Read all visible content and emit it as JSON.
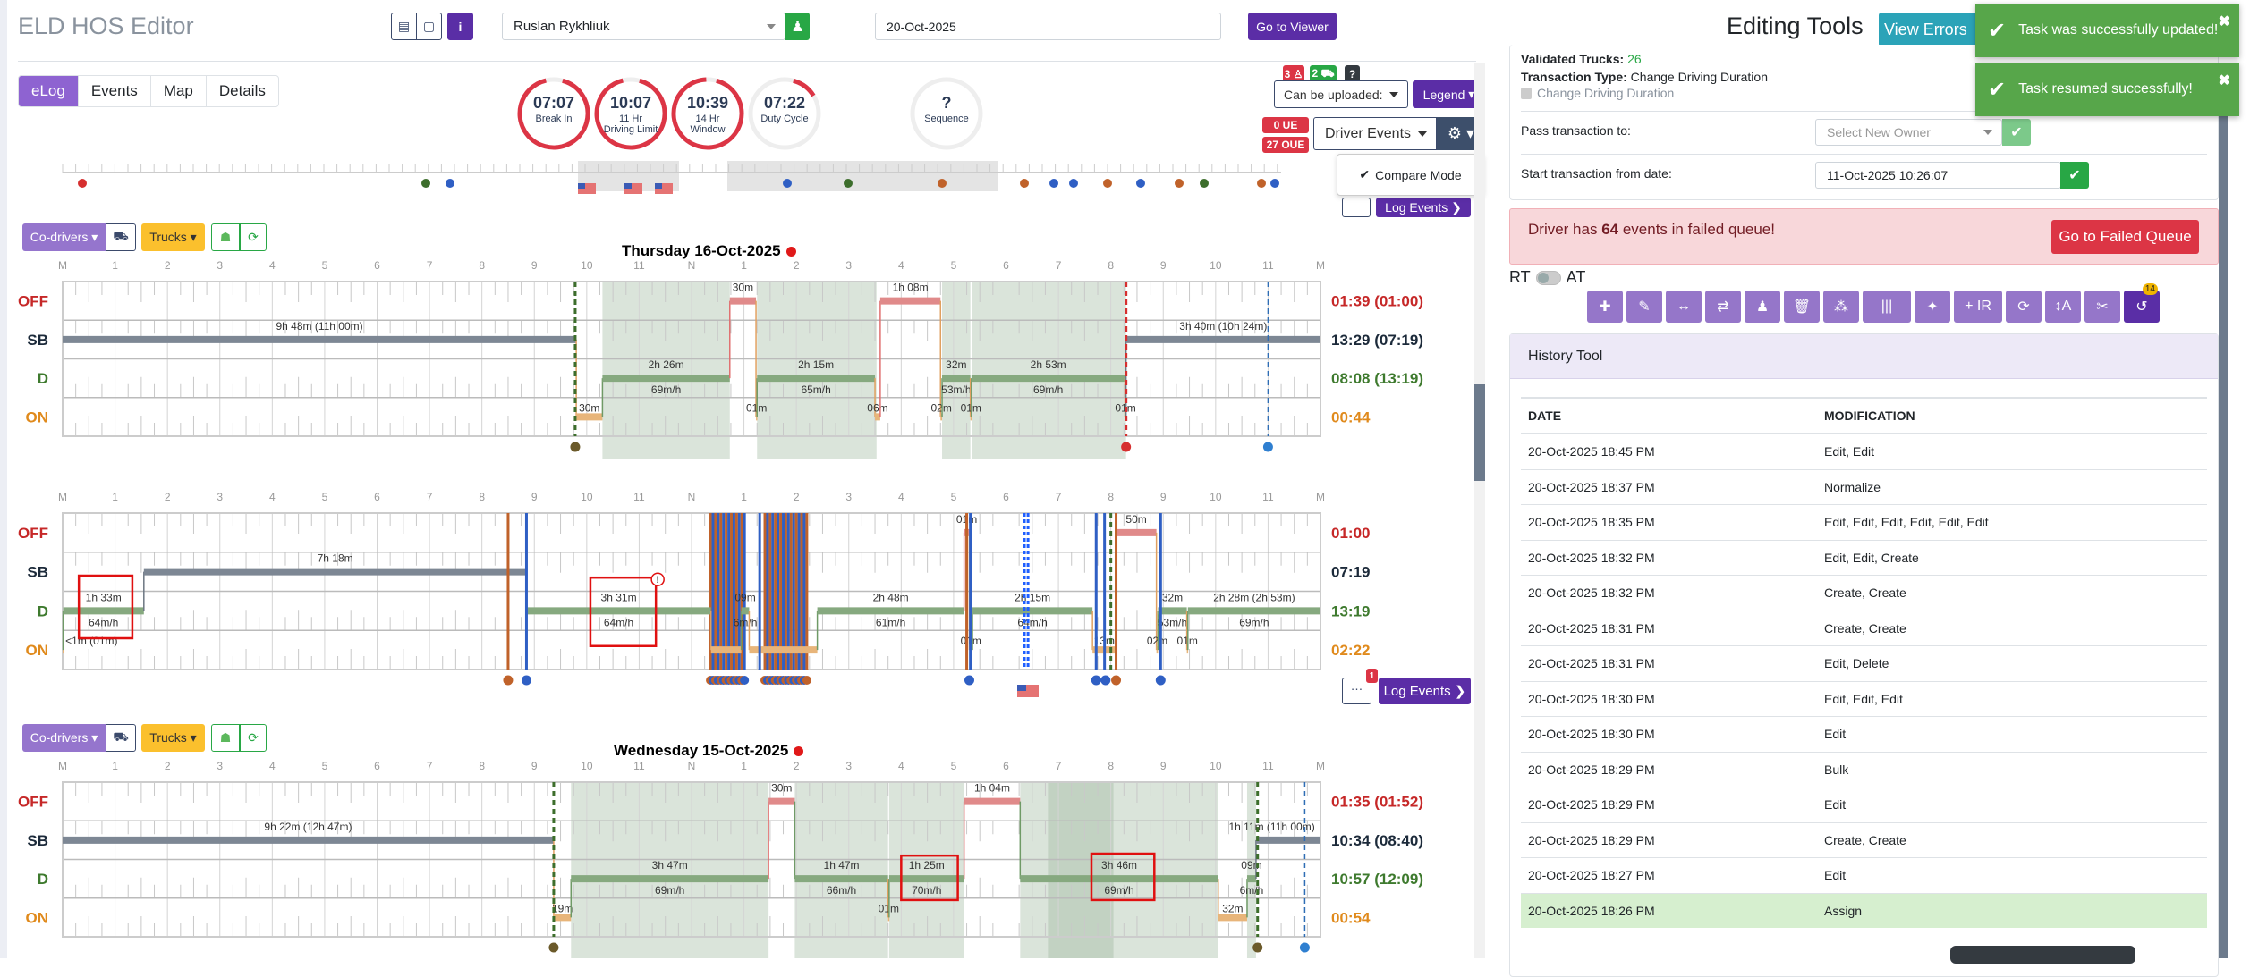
{
  "app": {
    "title": "ELD HOS Editor"
  },
  "header": {
    "driver": "Ruslan Rykhliuk",
    "date": "20-Oct-2025",
    "go_viewer": "Go to Viewer",
    "doc_icon": "▤",
    "note_icon": "▢",
    "info_icon": "i",
    "user_icon": "♟"
  },
  "tabs": [
    {
      "label": "eLog",
      "active": true
    },
    {
      "label": "Events"
    },
    {
      "label": "Map"
    },
    {
      "label": "Details"
    }
  ],
  "gauges": [
    {
      "value": "07:07",
      "label1": "Break In",
      "label2": "",
      "fraction": 0.92
    },
    {
      "value": "10:07",
      "label1": "11 Hr",
      "label2": "Driving Limit",
      "fraction": 0.92
    },
    {
      "value": "10:39",
      "label1": "14 Hr",
      "label2": "Window",
      "fraction": 0.95
    },
    {
      "value": "07:22",
      "label1": "Duty Cycle",
      "label2": "",
      "fraction": 0.12
    },
    {
      "value": "?",
      "label1": "Sequence",
      "label2": "",
      "fraction": 0
    }
  ],
  "controls": {
    "badge_driver": "3 ♙",
    "badge_truck": "2 ⛟",
    "badge_help": "?",
    "upload_select": "Can be uploaded:",
    "legend": "Legend",
    "ue": "0 UE",
    "oue": "27 OUE",
    "driver_events": "Driver Events",
    "gear_icon": "⚙",
    "compare_check": "✔",
    "compare_mode": "Compare Mode",
    "log_events": "Log Events ❯",
    "chat_icon": "…",
    "chat_badge": "1"
  },
  "toolbar": {
    "codrivers": "Co-drivers ▾",
    "truck_icon": "⛟",
    "trucks": "Trucks ▾",
    "robot_icon": "☗",
    "refresh_icon": "⟳"
  },
  "grid": {
    "hour_labels": [
      "M",
      "1",
      "2",
      "3",
      "4",
      "5",
      "6",
      "7",
      "8",
      "9",
      "10",
      "11",
      "N",
      "1",
      "2",
      "3",
      "4",
      "5",
      "6",
      "7",
      "8",
      "9",
      "10",
      "11",
      "M"
    ],
    "rows": [
      "OFF",
      "SB",
      "D",
      "ON"
    ],
    "colors": {
      "OFF": "#c62828",
      "SB": "#1c2a3a",
      "D": "#3e7a2e",
      "ON": "#e08a1c"
    }
  },
  "days": [
    {
      "title": "Thursday 16-Oct-2025",
      "totals": [
        "01:39 (01:00)",
        "13:29 (07:19)",
        "08:08 (13:19)",
        "00:44"
      ],
      "segments": [
        {
          "status": "SB",
          "from": 0,
          "to": 9.8,
          "label": "9h 48m (11h 00m)"
        },
        {
          "status": "ON",
          "from": 9.8,
          "to": 10.3,
          "label": "30m"
        },
        {
          "status": "D",
          "from": 10.3,
          "to": 12.73,
          "label": "2h 26m",
          "speed": "69m/h"
        },
        {
          "status": "OFF",
          "from": 12.73,
          "to": 13.23,
          "label": "30m"
        },
        {
          "status": "ON",
          "from": 13.23,
          "to": 13.25,
          "label": "01m"
        },
        {
          "status": "D",
          "from": 13.25,
          "to": 15.5,
          "label": "2h 15m",
          "speed": "65m/h"
        },
        {
          "status": "ON",
          "from": 15.5,
          "to": 15.6,
          "label": "06m"
        },
        {
          "status": "OFF",
          "from": 15.6,
          "to": 16.75,
          "label": "1h 08m"
        },
        {
          "status": "ON",
          "from": 16.75,
          "to": 16.78,
          "label": "02m"
        },
        {
          "status": "D",
          "from": 16.78,
          "to": 17.32,
          "label": "32m",
          "speed": "53m/h"
        },
        {
          "status": "ON",
          "from": 17.32,
          "to": 17.34,
          "label": "01m"
        },
        {
          "status": "D",
          "from": 17.34,
          "to": 20.27,
          "label": "2h 53m",
          "speed": "69m/h"
        },
        {
          "status": "ON",
          "from": 20.27,
          "to": 20.29,
          "label": "01m"
        },
        {
          "status": "SB",
          "from": 20.29,
          "to": 24,
          "label": "3h 40m (10h 24m)"
        }
      ],
      "shade": [
        [
          10.3,
          12.73
        ],
        [
          13.25,
          15.53
        ],
        [
          16.78,
          17.32
        ],
        [
          17.36,
          20.29
        ]
      ],
      "vlines": [
        {
          "at": 9.78,
          "color": "#3d6e2c",
          "style": "dashed"
        },
        {
          "at": 20.29,
          "color": "#d62f2f",
          "style": "dashed"
        },
        {
          "at": 23.0,
          "color": "#2f6db5",
          "style": "dashed-thin"
        }
      ],
      "markers": [
        {
          "at": 9.78,
          "color": "#6b5a2a"
        },
        {
          "at": 20.29,
          "color": "#d62f2f"
        },
        {
          "at": 23.0,
          "color": "#2f7fd0"
        }
      ],
      "highlights": [],
      "clusters": []
    },
    {
      "title": "",
      "totals": [
        "01:00",
        "07:19",
        "13:19",
        "02:22"
      ],
      "segments": [
        {
          "status": "ON",
          "from": 0,
          "to": 0.01,
          "label": "<1m (01m)"
        },
        {
          "status": "D",
          "from": 0.01,
          "to": 1.55,
          "label": "1h 33m",
          "speed": "64m/h"
        },
        {
          "status": "SB",
          "from": 1.55,
          "to": 8.85,
          "label": "7h 18m"
        },
        {
          "status": "D",
          "from": 8.85,
          "to": 12.37,
          "label": "3h 31m",
          "speed": "64m/h"
        },
        {
          "status": "ON",
          "from": 12.37,
          "to": 12.95
        },
        {
          "status": "D",
          "from": 12.95,
          "to": 13.1,
          "label": "09m",
          "speed": "6m/h"
        },
        {
          "status": "ON",
          "from": 13.1,
          "to": 14.4
        },
        {
          "status": "D",
          "from": 14.4,
          "to": 17.2,
          "label": "2h 48m",
          "speed": "61m/h"
        },
        {
          "status": "OFF",
          "from": 17.2,
          "to": 17.3,
          "label": "01m"
        },
        {
          "status": "ON",
          "from": 17.3,
          "to": 17.36,
          "label": "01m"
        },
        {
          "status": "D",
          "from": 17.36,
          "to": 19.65,
          "label": "2h 15m",
          "speed": "64m/h"
        },
        {
          "status": "ON",
          "from": 19.65,
          "to": 20.1,
          "label": "13m"
        },
        {
          "status": "OFF",
          "from": 20.1,
          "to": 20.87,
          "label": "50m"
        },
        {
          "status": "ON",
          "from": 20.87,
          "to": 20.9,
          "label": "02m"
        },
        {
          "status": "D",
          "from": 20.9,
          "to": 21.45,
          "label": "32m",
          "speed": "53m/h"
        },
        {
          "status": "ON",
          "from": 21.45,
          "to": 21.47,
          "label": "01m"
        },
        {
          "status": "D",
          "from": 21.47,
          "to": 24,
          "label": "2h 28m (2h 53m)",
          "speed": "69m/h"
        }
      ],
      "shade": [],
      "vlines": [
        {
          "at": 8.5,
          "color": "#c0622a",
          "style": "solid"
        },
        {
          "at": 8.85,
          "color": "#2f5fc4",
          "style": "solid"
        },
        {
          "at": 13.3,
          "color": "#2f5fc4",
          "style": "solid"
        },
        {
          "at": 17.25,
          "color": "#c0622a",
          "style": "solid"
        },
        {
          "at": 17.32,
          "color": "#2f5fc4",
          "style": "solid"
        },
        {
          "at": 18.35,
          "color": "#1f5fff",
          "style": "dotted"
        },
        {
          "at": 18.42,
          "color": "#1f5fff",
          "style": "dotted"
        },
        {
          "at": 19.72,
          "color": "#2f5fc4",
          "style": "solid"
        },
        {
          "at": 19.88,
          "color": "#2f5fc4",
          "style": "solid"
        },
        {
          "at": 20.0,
          "color": "#3d6e2c",
          "style": "dashed"
        },
        {
          "at": 20.1,
          "color": "#c0622a",
          "style": "solid"
        },
        {
          "at": 20.95,
          "color": "#2f5fc4",
          "style": "solid"
        }
      ],
      "markers": [
        {
          "at": 8.5,
          "color": "#c0622a"
        },
        {
          "at": 8.85,
          "color": "#2f5fc4"
        },
        {
          "at": 17.3,
          "color": "#2f5fc4"
        },
        {
          "at": 19.72,
          "color": "#2f5fc4"
        },
        {
          "at": 19.9,
          "color": "#2f5fc4"
        },
        {
          "at": 20.1,
          "color": "#c0622a"
        },
        {
          "at": 20.95,
          "color": "#2f5fc4"
        }
      ],
      "highlights": [
        {
          "from": 0.31,
          "to": 1.33,
          "row_from": 1.6,
          "row_to": 3.2,
          "alert": false
        },
        {
          "from": 10.07,
          "to": 11.32,
          "row_from": 1.65,
          "row_to": 3.4,
          "alert": true
        }
      ],
      "clusters": [
        [
          12.36,
          13.05
        ],
        [
          13.4,
          14.23
        ]
      ]
    },
    {
      "title": "Wednesday 15-Oct-2025",
      "totals": [
        "01:35 (01:52)",
        "10:34 (08:40)",
        "10:57 (12:09)",
        "00:54"
      ],
      "segments": [
        {
          "status": "SB",
          "from": 0,
          "to": 9.37,
          "label": "9h 22m (12h 47m)"
        },
        {
          "status": "ON",
          "from": 9.37,
          "to": 9.7,
          "label": "19m"
        },
        {
          "status": "D",
          "from": 9.7,
          "to": 13.47,
          "label": "3h 47m",
          "speed": "69m/h"
        },
        {
          "status": "OFF",
          "from": 13.47,
          "to": 13.97,
          "label": "30m"
        },
        {
          "status": "D",
          "from": 13.97,
          "to": 15.75,
          "label": "1h 47m",
          "speed": "66m/h"
        },
        {
          "status": "ON",
          "from": 15.75,
          "to": 15.77,
          "label": "01m"
        },
        {
          "status": "D",
          "from": 15.77,
          "to": 17.2,
          "label": "1h 25m",
          "speed": "70m/h"
        },
        {
          "status": "OFF",
          "from": 17.2,
          "to": 18.27,
          "label": "1h 04m"
        },
        {
          "status": "D",
          "from": 18.27,
          "to": 22.05,
          "label": "3h 46m",
          "speed": "69m/h"
        },
        {
          "status": "ON",
          "from": 22.05,
          "to": 22.6,
          "label": "32m"
        },
        {
          "status": "D",
          "from": 22.6,
          "to": 22.77,
          "label": "09m",
          "speed": "6m/h"
        },
        {
          "status": "SB",
          "from": 22.77,
          "to": 24,
          "label": "1h 11m (11h 00m)"
        }
      ],
      "shade": [
        [
          9.7,
          13.47
        ],
        [
          13.97,
          15.75
        ],
        [
          15.77,
          17.2
        ],
        [
          18.27,
          22.05
        ],
        [
          18.8,
          20.05
        ],
        [
          22.6,
          22.77
        ]
      ],
      "vlines": [
        {
          "at": 9.37,
          "color": "#3d6e2c",
          "style": "dashed"
        },
        {
          "at": 22.8,
          "color": "#3d6e2c",
          "style": "dashed"
        },
        {
          "at": 23.7,
          "color": "#2f6db5",
          "style": "dashed-thin"
        }
      ],
      "markers": [
        {
          "at": 9.37,
          "color": "#6b5a2a"
        },
        {
          "at": 22.8,
          "color": "#6b5a2a"
        },
        {
          "at": 23.7,
          "color": "#2f7fd0"
        }
      ],
      "highlights": [
        {
          "from": 16.0,
          "to": 17.08,
          "row_from": 1.9,
          "row_to": 3.05,
          "alert": false
        },
        {
          "from": 19.63,
          "to": 20.83,
          "row_from": 1.85,
          "row_to": 3.05,
          "alert": false
        }
      ],
      "clusters": []
    }
  ],
  "editing": {
    "title": "Editing Tools",
    "view_errors": "View Errors",
    "validated_label": "Validated Trucks:",
    "validated_value": "26",
    "transaction_label": "Transaction Type:",
    "transaction_value": "Change Driving Duration",
    "checkbox_label": "Change Driving Duration",
    "pass_label": "Pass transaction to:",
    "owner_placeholder": "Select New Owner",
    "start_label": "Start transaction from date:",
    "start_value": "11-Oct-2025 10:26:07",
    "check_icon": "✔",
    "alert_pre": "Driver has ",
    "alert_count": "64",
    "alert_post": " events in failed queue!",
    "failed_queue": "Go to Failed Queue",
    "rt": "RT",
    "at": "AT",
    "tools": [
      {
        "name": "add",
        "icon": "✚"
      },
      {
        "name": "edit",
        "icon": "✎"
      },
      {
        "name": "shift",
        "icon": "↔"
      },
      {
        "name": "swap",
        "icon": "⇄"
      },
      {
        "name": "driver",
        "icon": "♟"
      },
      {
        "name": "delete",
        "icon": "🗑"
      },
      {
        "name": "co-drivers",
        "icon": "⁂"
      },
      {
        "name": "columns",
        "icon": "|||"
      },
      {
        "name": "magic",
        "icon": "✦"
      },
      {
        "name": "insert-ir",
        "icon": "+ IR"
      },
      {
        "name": "refresh",
        "icon": "⟳"
      },
      {
        "name": "text-height",
        "icon": "↕A"
      },
      {
        "name": "cut",
        "icon": "✂"
      },
      {
        "name": "history",
        "icon": "↺",
        "badge": "14"
      }
    ]
  },
  "toasts": [
    {
      "text": "Task was successfully updated!",
      "icon": "✔",
      "close": "✖"
    },
    {
      "text": "Task resumed successfully!",
      "icon": "✔",
      "close": "✖"
    }
  ],
  "history": {
    "title": "History Tool",
    "columns": [
      "DATE",
      "MODIFICATION"
    ],
    "rows": [
      [
        "20-Oct-2025 18:45 PM",
        "Edit, Edit"
      ],
      [
        "20-Oct-2025 18:37 PM",
        "Normalize"
      ],
      [
        "20-Oct-2025 18:35 PM",
        "Edit, Edit, Edit, Edit, Edit, Edit"
      ],
      [
        "20-Oct-2025 18:32 PM",
        "Edit, Edit, Create"
      ],
      [
        "20-Oct-2025 18:32 PM",
        "Create, Create"
      ],
      [
        "20-Oct-2025 18:31 PM",
        "Create, Create"
      ],
      [
        "20-Oct-2025 18:31 PM",
        "Edit, Delete"
      ],
      [
        "20-Oct-2025 18:30 PM",
        "Edit, Edit, Edit"
      ],
      [
        "20-Oct-2025 18:30 PM",
        "Edit"
      ],
      [
        "20-Oct-2025 18:29 PM",
        "Bulk"
      ],
      [
        "20-Oct-2025 18:29 PM",
        "Edit"
      ],
      [
        "20-Oct-2025 18:29 PM",
        "Create, Create"
      ],
      [
        "20-Oct-2025 18:27 PM",
        "Edit"
      ],
      [
        "20-Oct-2025 18:26 PM",
        "Assign"
      ]
    ],
    "highlight_row": 13
  }
}
